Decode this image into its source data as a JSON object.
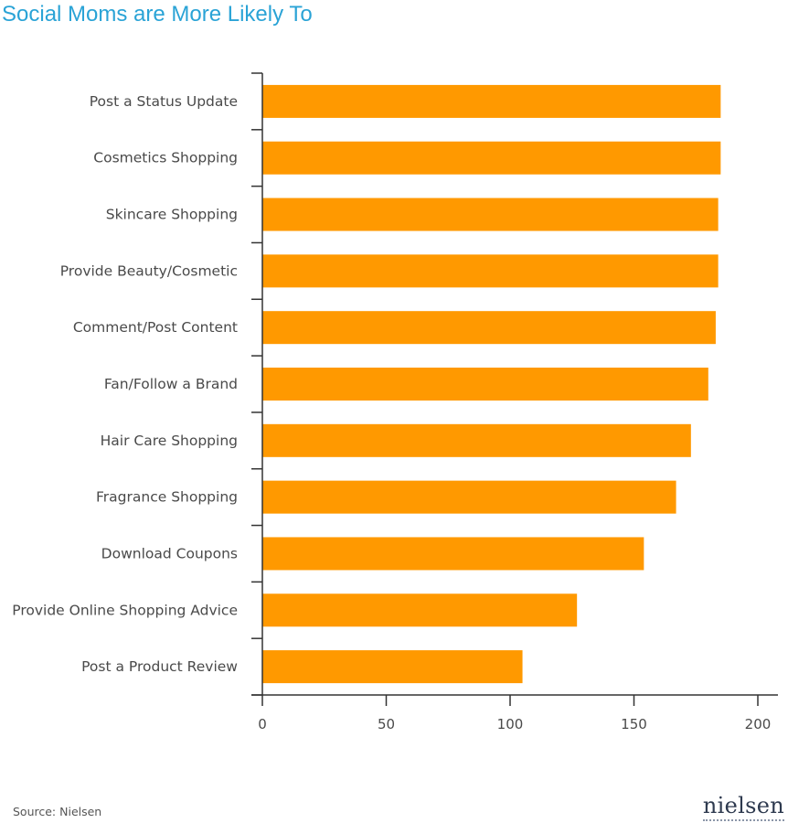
{
  "title": "Social Moms are More Likely To",
  "source": "Source: Nielsen",
  "logo_text": "nielsen",
  "colors": {
    "title": "#2aa3d6",
    "bar": "#ff9900",
    "axis": "#333333",
    "text": "#4a4a4a"
  },
  "chart_data": {
    "type": "bar",
    "orientation": "horizontal",
    "categories": [
      "Post a Status Update",
      "Cosmetics Shopping",
      "Skincare Shopping",
      "Provide Beauty/Cosmetic",
      "Comment/Post Content",
      "Fan/Follow a Brand",
      "Hair Care Shopping",
      "Fragrance Shopping",
      "Download Coupons",
      "Provide Online Shopping Advice",
      "Post a Product Review"
    ],
    "values": [
      185,
      185,
      184,
      184,
      183,
      180,
      173,
      167,
      154,
      127,
      105
    ],
    "xlim": [
      0,
      207
    ],
    "xticks": [
      0,
      50,
      100,
      150,
      200
    ],
    "xtick_labels": [
      "0",
      "50",
      "100",
      "150",
      "200"
    ],
    "grid": false,
    "legend": "none"
  }
}
